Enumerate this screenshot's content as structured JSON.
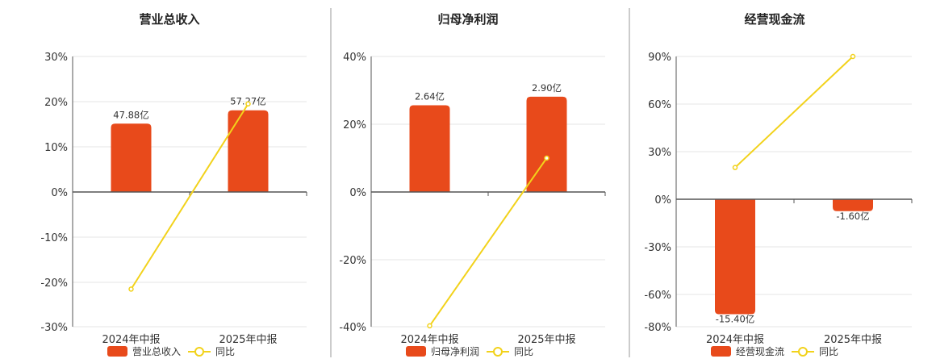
{
  "colors": {
    "bar": "#E84A1B",
    "line": "#F2D21B",
    "axis": "#555555",
    "grid": "#E6E6E6",
    "divider": "#999999"
  },
  "chart_data": [
    {
      "type": "bar",
      "title": "营业总收入",
      "categories": [
        "2024年中报",
        "2025年中报"
      ],
      "bar_series": {
        "name": "营业总收入",
        "values": [
          47.88,
          57.27
        ],
        "labels": [
          "47.88亿",
          "57.27亿"
        ]
      },
      "line_series": {
        "name": "同比",
        "values": [
          -21.5,
          19.5
        ]
      },
      "yticks": [
        "30%",
        "20%",
        "10%",
        "0%",
        "-10%",
        "-20%",
        "-30%"
      ],
      "ylim": [
        -30,
        30
      ],
      "bar_scale_max": 80
    },
    {
      "type": "bar",
      "title": "归母净利润",
      "categories": [
        "2024年中报",
        "2025年中报"
      ],
      "bar_series": {
        "name": "归母净利润",
        "values": [
          2.64,
          2.9
        ],
        "labels": [
          "2.64亿",
          "2.90亿"
        ]
      },
      "line_series": {
        "name": "同比",
        "values": [
          -39.5,
          10.0
        ]
      },
      "yticks": [
        "40%",
        "20%",
        "0%",
        "-20%",
        "-40%"
      ],
      "ylim": [
        -40,
        40
      ],
      "bar_scale_max": 3.5
    },
    {
      "type": "bar",
      "title": "经营现金流",
      "categories": [
        "2024年中报",
        "2025年中报"
      ],
      "bar_series": {
        "name": "经营现金流",
        "values": [
          -15.4,
          -1.6
        ],
        "labels": [
          "-15.40亿",
          "-1.60亿"
        ]
      },
      "line_series": {
        "name": "同比",
        "values": [
          20,
          90
        ]
      },
      "yticks": [
        "90%",
        "60%",
        "30%",
        "0%",
        "-30%",
        "-60%",
        "-80%"
      ],
      "ylim": [
        -80,
        90
      ],
      "bar_scale_max": 16
    }
  ]
}
